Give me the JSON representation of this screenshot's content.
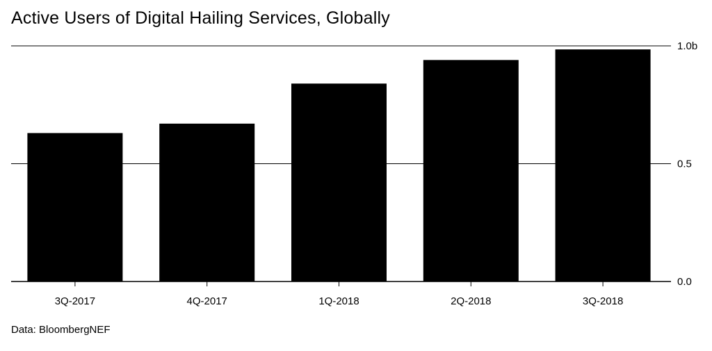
{
  "title": "Active Users of Digital Hailing Services, Globally",
  "source": "Data: BloombergNEF",
  "colors": {
    "bar": "#000000",
    "grid": "#000000",
    "text": "#000000",
    "background": "#ffffff"
  },
  "chart_data": {
    "type": "bar",
    "title": "Active Users of Digital Hailing Services, Globally",
    "xlabel": "",
    "ylabel": "",
    "categories": [
      "3Q-2017",
      "4Q-2017",
      "1Q-2018",
      "2Q-2018",
      "3Q-2018"
    ],
    "values": [
      0.63,
      0.67,
      0.84,
      0.94,
      0.985
    ],
    "ylim": [
      0,
      1.0
    ],
    "yticks": [
      0.0,
      0.5,
      1.0
    ],
    "ytick_labels": [
      "0.0",
      "0.5",
      "1.0b"
    ],
    "y_axis_side": "right",
    "grid": true,
    "legend": "none"
  }
}
